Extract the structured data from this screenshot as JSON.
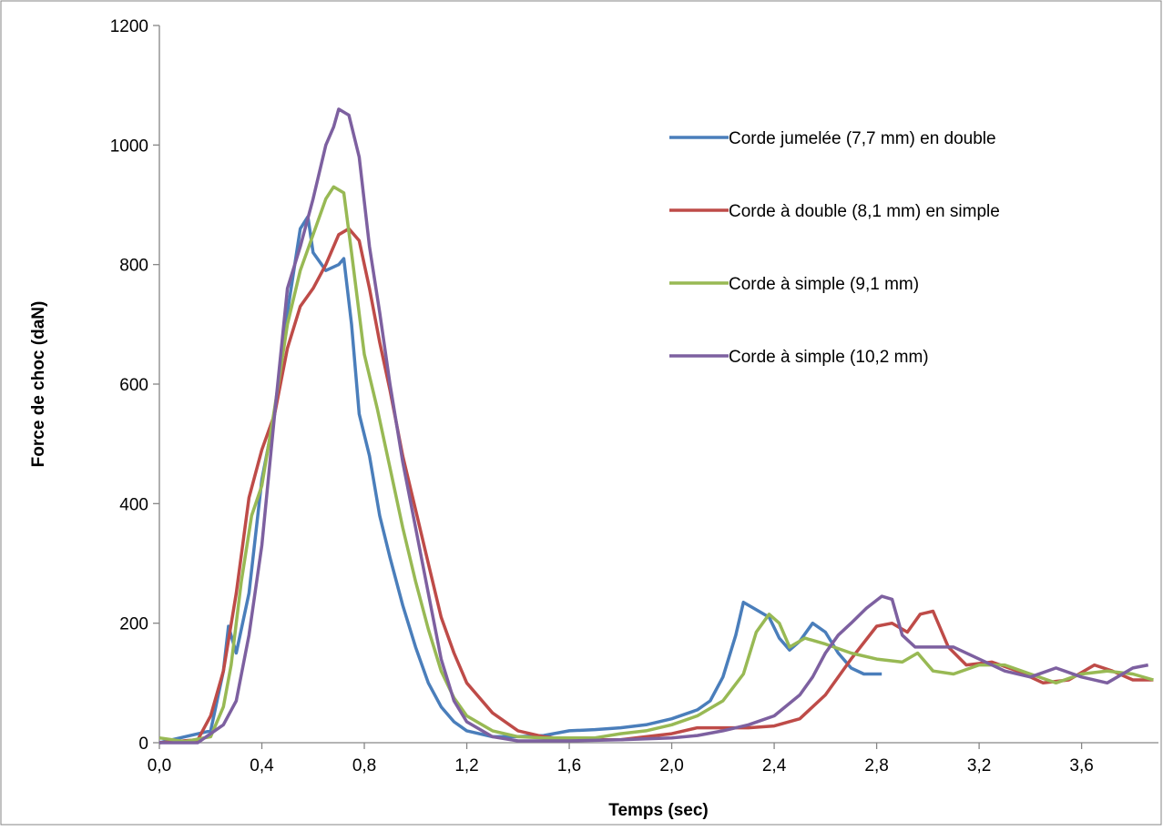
{
  "chart_data": {
    "type": "line",
    "xlabel": "Temps (sec)",
    "ylabel": "Force de choc (daN)",
    "xlim": [
      0,
      3.9
    ],
    "ylim": [
      0,
      1200
    ],
    "xticks": [
      {
        "value": 0,
        "label": "0,0"
      },
      {
        "value": 0.4,
        "label": "0,4"
      },
      {
        "value": 0.8,
        "label": "0,8"
      },
      {
        "value": 1.2,
        "label": "1,2"
      },
      {
        "value": 1.6,
        "label": "1,6"
      },
      {
        "value": 2.0,
        "label": "2,0"
      },
      {
        "value": 2.4,
        "label": "2,4"
      },
      {
        "value": 2.8,
        "label": "2,8"
      },
      {
        "value": 3.2,
        "label": "3,2"
      },
      {
        "value": 3.6,
        "label": "3,6"
      }
    ],
    "yticks": [
      0,
      200,
      400,
      600,
      800,
      1000,
      1200
    ],
    "grid": false,
    "legend": "upper right",
    "series": [
      {
        "name": "Corde jumelée (7,7 mm) en double",
        "color": "#4a7ebb",
        "x": [
          0,
          0.1,
          0.2,
          0.22,
          0.25,
          0.27,
          0.3,
          0.35,
          0.4,
          0.45,
          0.5,
          0.55,
          0.58,
          0.6,
          0.65,
          0.7,
          0.72,
          0.75,
          0.78,
          0.82,
          0.86,
          0.9,
          0.95,
          1.0,
          1.05,
          1.1,
          1.15,
          1.2,
          1.3,
          1.4,
          1.5,
          1.6,
          1.7,
          1.8,
          1.9,
          2.0,
          2.1,
          2.15,
          2.2,
          2.25,
          2.28,
          2.32,
          2.38,
          2.42,
          2.46,
          2.5,
          2.55,
          2.6,
          2.65,
          2.7,
          2.75,
          2.82
        ],
        "values": [
          0,
          10,
          20,
          60,
          120,
          195,
          150,
          250,
          440,
          550,
          720,
          860,
          880,
          820,
          790,
          800,
          810,
          700,
          550,
          480,
          380,
          310,
          230,
          160,
          100,
          60,
          35,
          20,
          10,
          10,
          12,
          20,
          22,
          25,
          30,
          40,
          55,
          70,
          110,
          180,
          235,
          225,
          210,
          175,
          155,
          170,
          200,
          185,
          150,
          125,
          115,
          115
        ]
      },
      {
        "name": "Corde à double (8,1 mm) en simple",
        "color": "#be4b48",
        "x": [
          0,
          0.15,
          0.2,
          0.25,
          0.3,
          0.35,
          0.4,
          0.45,
          0.5,
          0.55,
          0.6,
          0.65,
          0.7,
          0.74,
          0.78,
          0.82,
          0.86,
          0.9,
          0.95,
          1.0,
          1.05,
          1.1,
          1.15,
          1.2,
          1.3,
          1.4,
          1.5,
          1.6,
          1.8,
          1.9,
          2.0,
          2.1,
          2.2,
          2.3,
          2.4,
          2.5,
          2.6,
          2.7,
          2.8,
          2.86,
          2.92,
          2.97,
          3.02,
          3.08,
          3.15,
          3.25,
          3.35,
          3.45,
          3.55,
          3.65,
          3.72,
          3.8,
          3.88
        ],
        "values": [
          0,
          5,
          45,
          120,
          250,
          410,
          490,
          550,
          660,
          730,
          760,
          800,
          850,
          860,
          840,
          760,
          670,
          590,
          480,
          390,
          300,
          210,
          150,
          100,
          50,
          20,
          10,
          5,
          5,
          10,
          15,
          25,
          25,
          25,
          28,
          40,
          80,
          140,
          195,
          200,
          185,
          215,
          220,
          160,
          130,
          135,
          120,
          100,
          105,
          130,
          120,
          105,
          105
        ]
      },
      {
        "name": "Corde à simple (9,1 mm)",
        "color": "#98b954",
        "x": [
          0,
          0.1,
          0.2,
          0.25,
          0.28,
          0.32,
          0.36,
          0.4,
          0.45,
          0.5,
          0.55,
          0.6,
          0.65,
          0.68,
          0.72,
          0.75,
          0.8,
          0.85,
          0.9,
          0.95,
          1.0,
          1.05,
          1.1,
          1.15,
          1.2,
          1.3,
          1.4,
          1.5,
          1.7,
          1.8,
          1.9,
          2.0,
          2.1,
          2.2,
          2.28,
          2.33,
          2.38,
          2.42,
          2.46,
          2.52,
          2.6,
          2.7,
          2.8,
          2.9,
          2.96,
          3.02,
          3.1,
          3.2,
          3.3,
          3.4,
          3.5,
          3.6,
          3.7,
          3.8,
          3.88
        ],
        "values": [
          8,
          2,
          10,
          60,
          130,
          270,
          380,
          430,
          560,
          700,
          790,
          850,
          910,
          930,
          920,
          820,
          650,
          560,
          460,
          360,
          270,
          190,
          120,
          75,
          45,
          20,
          10,
          8,
          8,
          15,
          20,
          30,
          45,
          70,
          115,
          185,
          215,
          200,
          160,
          175,
          165,
          150,
          140,
          135,
          150,
          120,
          115,
          130,
          130,
          115,
          100,
          115,
          120,
          115,
          105
        ]
      },
      {
        "name": "Corde à simple (10,2 mm)",
        "color": "#7d60a0",
        "x": [
          0,
          0.15,
          0.2,
          0.25,
          0.3,
          0.35,
          0.4,
          0.45,
          0.5,
          0.55,
          0.6,
          0.65,
          0.68,
          0.7,
          0.74,
          0.78,
          0.82,
          0.86,
          0.9,
          0.95,
          1.0,
          1.05,
          1.1,
          1.15,
          1.2,
          1.3,
          1.4,
          1.6,
          1.8,
          2.0,
          2.1,
          2.2,
          2.3,
          2.4,
          2.5,
          2.55,
          2.6,
          2.65,
          2.7,
          2.76,
          2.82,
          2.86,
          2.9,
          2.95,
          3.0,
          3.1,
          3.2,
          3.3,
          3.4,
          3.5,
          3.6,
          3.7,
          3.8,
          3.86
        ],
        "values": [
          0,
          0,
          15,
          30,
          70,
          180,
          330,
          550,
          760,
          830,
          910,
          1000,
          1030,
          1060,
          1050,
          980,
          830,
          720,
          600,
          470,
          360,
          250,
          140,
          70,
          35,
          10,
          3,
          3,
          5,
          8,
          12,
          20,
          30,
          45,
          80,
          110,
          150,
          180,
          200,
          225,
          245,
          240,
          180,
          160,
          160,
          160,
          140,
          120,
          110,
          125,
          110,
          100,
          125,
          130
        ]
      }
    ]
  }
}
